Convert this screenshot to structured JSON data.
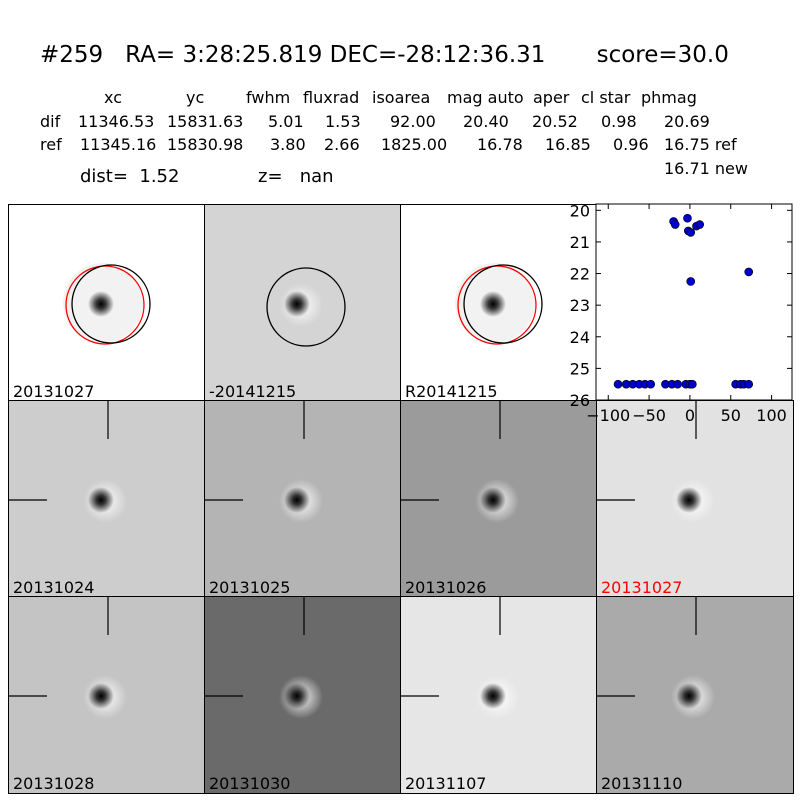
{
  "header": {
    "title": "#259   RA= 3:28:25.819 DEC=-28:12:36.31       score=30.0",
    "columns": [
      "xc",
      "yc",
      "fwhm",
      "fluxrad",
      "isoarea",
      "mag auto",
      "aper",
      "cl star",
      "phmag"
    ],
    "rows": [
      {
        "label": "dif",
        "values": [
          "11346.53",
          "15831.63",
          "5.01",
          "1.53",
          "92.00",
          "20.40",
          "20.52",
          "0.98",
          "20.69"
        ]
      },
      {
        "label": "ref",
        "values": [
          "11345.16",
          "15830.98",
          "3.80",
          "2.66",
          "1825.00",
          "16.78",
          "16.85",
          "0.96",
          "16.75 ref"
        ]
      }
    ],
    "phmag_new": "16.71 new",
    "dist_label": "dist=  1.52",
    "z_label": "z=   nan"
  },
  "panels": [
    {
      "label": "20131027",
      "bg": "#ffffff",
      "label_color": "#000000",
      "circles": [
        "red",
        "black"
      ],
      "cross": false
    },
    {
      "label": "-20141215",
      "bg": "#d4d4d4",
      "label_color": "#000000",
      "circles": [
        "black"
      ],
      "cross": false
    },
    {
      "label": "R20141215",
      "bg": "#ffffff",
      "label_color": "#000000",
      "circles": [
        "red",
        "black"
      ],
      "cross": false
    },
    {
      "label": "20131024",
      "bg": "#cdcdcd",
      "label_color": "#000000",
      "circles": [],
      "cross": true
    },
    {
      "label": "20131025",
      "bg": "#b4b4b4",
      "label_color": "#000000",
      "circles": [],
      "cross": true
    },
    {
      "label": "20131026",
      "bg": "#9b9b9b",
      "label_color": "#000000",
      "circles": [],
      "cross": true
    },
    {
      "label": "20131027",
      "bg": "#e2e2e2",
      "label_color": "#ff0000",
      "circles": [],
      "cross": true
    },
    {
      "label": "20131028",
      "bg": "#c4c4c4",
      "label_color": "#000000",
      "circles": [],
      "cross": true
    },
    {
      "label": "20131030",
      "bg": "#6a6a6a",
      "label_color": "#000000",
      "circles": [],
      "cross": true
    },
    {
      "label": "20131107",
      "bg": "#e6e6e6",
      "label_color": "#000000",
      "circles": [],
      "cross": true
    },
    {
      "label": "20131110",
      "bg": "#aaaaaa",
      "label_color": "#000000",
      "circles": [],
      "cross": true
    }
  ],
  "chart_data": {
    "type": "scatter",
    "title": "",
    "xlabel": "",
    "ylabel": "",
    "xlim": [
      -115,
      125
    ],
    "ylim": [
      26,
      19.8
    ],
    "y_inverted": true,
    "xticks": [
      -100,
      -50,
      0,
      50,
      100
    ],
    "yticks": [
      20,
      21,
      22,
      23,
      24,
      25,
      26
    ],
    "marker_color": "#0000cc",
    "points": [
      {
        "x": -3,
        "y": 20.25
      },
      {
        "x": -20,
        "y": 20.35
      },
      {
        "x": -18,
        "y": 20.45
      },
      {
        "x": -2,
        "y": 20.65
      },
      {
        "x": 1,
        "y": 20.7
      },
      {
        "x": 8,
        "y": 20.5
      },
      {
        "x": 12,
        "y": 20.45
      },
      {
        "x": 1,
        "y": 22.25
      },
      {
        "x": 72,
        "y": 21.95
      },
      {
        "x": -88,
        "y": 25.5
      },
      {
        "x": -78,
        "y": 25.5
      },
      {
        "x": -70,
        "y": 25.5
      },
      {
        "x": -62,
        "y": 25.5
      },
      {
        "x": -55,
        "y": 25.5
      },
      {
        "x": -48,
        "y": 25.5
      },
      {
        "x": -30,
        "y": 25.5
      },
      {
        "x": -22,
        "y": 25.5
      },
      {
        "x": -15,
        "y": 25.5
      },
      {
        "x": -5,
        "y": 25.5
      },
      {
        "x": 0,
        "y": 25.5
      },
      {
        "x": 3,
        "y": 25.5
      },
      {
        "x": 56,
        "y": 25.5
      },
      {
        "x": 62,
        "y": 25.5
      },
      {
        "x": 66,
        "y": 25.5
      },
      {
        "x": 72,
        "y": 25.5
      }
    ]
  }
}
